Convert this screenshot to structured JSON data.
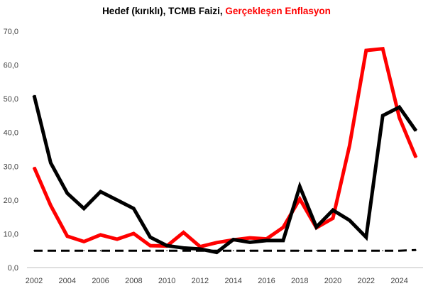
{
  "chart_data": {
    "type": "line",
    "title_parts": [
      {
        "text": "Hedef (kırıklı), TCMB Faizi, ",
        "color": "#000000"
      },
      {
        "text": "Gerçekleşen Enflasyon",
        "color": "#ff0000"
      }
    ],
    "x": [
      2002,
      2003,
      2004,
      2005,
      2006,
      2007,
      2008,
      2009,
      2010,
      2011,
      2012,
      2013,
      2014,
      2015,
      2016,
      2017,
      2018,
      2019,
      2020,
      2021,
      2022,
      2023,
      2024,
      2025
    ],
    "x_ticks": [
      "2002",
      "2004",
      "2006",
      "2008",
      "2010",
      "2012",
      "2014",
      "2016",
      "2018",
      "2020",
      "2022",
      "2024"
    ],
    "y_ticks": [
      "0,0",
      "10,0",
      "20,0",
      "30,0",
      "40,0",
      "50,0",
      "60,0",
      "70,0"
    ],
    "ylim": [
      0,
      70
    ],
    "grid": false,
    "series": [
      {
        "color": "#000000",
        "style": "dashed",
        "values": [
          5.0,
          5.0,
          5.0,
          5.0,
          5.0,
          5.0,
          5.0,
          5.0,
          5.0,
          5.0,
          5.0,
          5.0,
          5.0,
          5.0,
          5.0,
          5.0,
          5.0,
          5.0,
          5.0,
          5.0,
          5.0,
          5.0,
          5.0,
          5.2
        ]
      },
      {
        "color": "#ff0000",
        "style": "solid",
        "values": [
          29.7,
          18.4,
          9.3,
          7.7,
          9.7,
          8.4,
          10.1,
          6.5,
          6.4,
          10.4,
          6.2,
          7.4,
          8.2,
          8.8,
          8.5,
          11.9,
          20.3,
          11.8,
          14.6,
          36.1,
          64.3,
          64.8,
          44.4,
          32.6
        ]
      },
      {
        "color": "#000000",
        "style": "solid",
        "values": [
          51.0,
          31.0,
          22.0,
          17.5,
          22.5,
          20.0,
          17.5,
          9.0,
          6.5,
          5.8,
          5.5,
          4.5,
          8.3,
          7.5,
          8.0,
          8.0,
          24.0,
          12.0,
          17.0,
          14.0,
          9.0,
          45.0,
          47.5,
          40.5
        ]
      }
    ]
  }
}
